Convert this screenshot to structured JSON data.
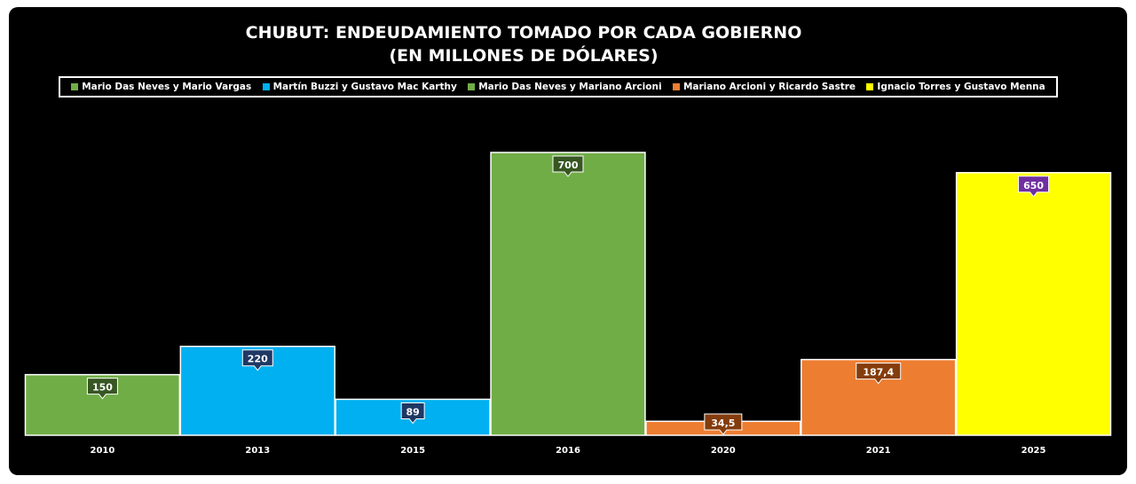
{
  "title_line1": "CHUBUT: ENDEUDAMIENTO TOMADO POR CADA GOBIERNO",
  "title_line2": "(EN MILLONES DE DÓLARES)",
  "legend": [
    {
      "label": "Mario Das Neves y Mario Vargas",
      "color": "#70ad47"
    },
    {
      "label": "Martín Buzzi y Gustavo Mac Karthy",
      "color": "#00b0f0"
    },
    {
      "label": "Mario Das Neves y Mariano Arcioni",
      "color": "#70ad47"
    },
    {
      "label": "Mariano Arcioni y Ricardo Sastre",
      "color": "#ed7d31"
    },
    {
      "label": "Ignacio Torres y Gustavo Menna",
      "color": "#ffff00"
    }
  ],
  "chart_data": {
    "type": "bar",
    "title": "CHUBUT: ENDEUDAMIENTO TOMADO POR CADA GOBIERNO (EN MILLONES DE DÓLARES)",
    "categories": [
      "2010",
      "2013",
      "2015",
      "2016",
      "2020",
      "2021",
      "2025"
    ],
    "values": [
      150,
      220,
      89,
      700,
      34.5,
      187.4,
      650
    ],
    "value_labels": [
      "150",
      "220",
      "89",
      "700",
      "34,5",
      "187,4",
      "650"
    ],
    "bar_colors": [
      "#70ad47",
      "#00b0f0",
      "#00b0f0",
      "#70ad47",
      "#ed7d31",
      "#ed7d31",
      "#ffff00"
    ],
    "label_colors": [
      "#375623",
      "#1f3864",
      "#1f3864",
      "#375623",
      "#843c0c",
      "#843c0c",
      "#7030a0"
    ],
    "xlabel": "",
    "ylabel": "",
    "ylim": [
      0,
      700
    ],
    "grid": false,
    "legend_position": "top"
  }
}
